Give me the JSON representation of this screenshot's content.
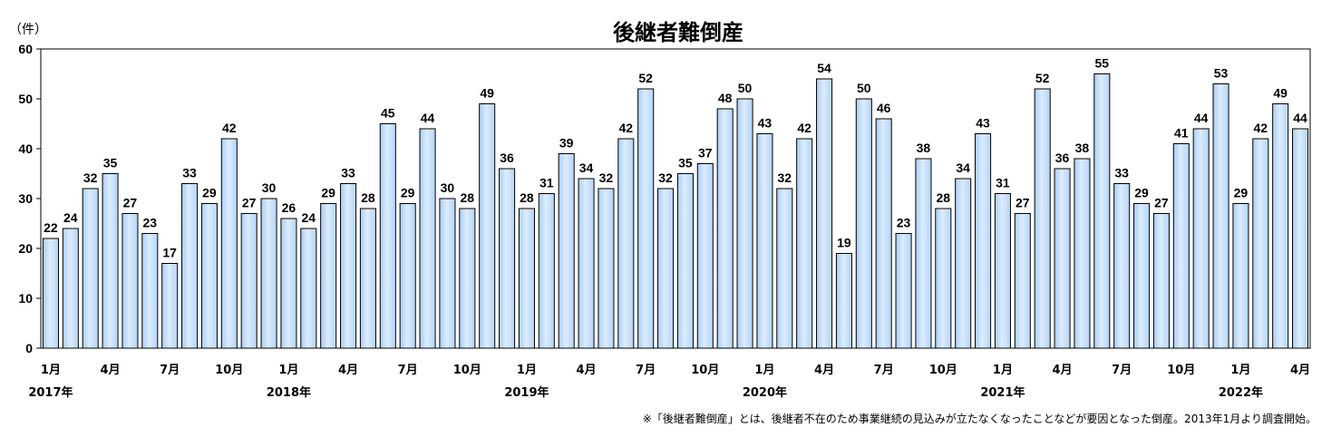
{
  "chart_data": {
    "type": "bar",
    "title": "後継者難倒産",
    "unit_label": "（件）",
    "ylim": [
      0,
      60
    ],
    "yticks": [
      "0",
      "10",
      "20",
      "30",
      "40",
      "50",
      "60"
    ],
    "grid": false,
    "bar_fill": "#c9e1fb",
    "values": [
      22,
      24,
      32,
      35,
      27,
      23,
      17,
      33,
      29,
      42,
      27,
      30,
      26,
      24,
      29,
      33,
      28,
      45,
      29,
      44,
      30,
      28,
      49,
      36,
      28,
      31,
      39,
      34,
      32,
      42,
      52,
      32,
      35,
      37,
      48,
      50,
      43,
      32,
      42,
      54,
      19,
      50,
      46,
      23,
      38,
      28,
      34,
      43,
      31,
      27,
      52,
      36,
      38,
      55,
      33,
      29,
      27,
      41,
      44,
      53,
      29,
      42,
      49,
      44
    ],
    "x_tick_labels": [
      {
        "index": 0,
        "month": "1月",
        "year": "2017年"
      },
      {
        "index": 3,
        "month": "4月",
        "year": ""
      },
      {
        "index": 6,
        "month": "7月",
        "year": ""
      },
      {
        "index": 9,
        "month": "10月",
        "year": ""
      },
      {
        "index": 12,
        "month": "1月",
        "year": "2018年"
      },
      {
        "index": 15,
        "month": "4月",
        "year": ""
      },
      {
        "index": 18,
        "month": "7月",
        "year": ""
      },
      {
        "index": 21,
        "month": "10月",
        "year": ""
      },
      {
        "index": 24,
        "month": "1月",
        "year": "2019年"
      },
      {
        "index": 27,
        "month": "4月",
        "year": ""
      },
      {
        "index": 30,
        "month": "7月",
        "year": ""
      },
      {
        "index": 33,
        "month": "10月",
        "year": ""
      },
      {
        "index": 36,
        "month": "1月",
        "year": "2020年"
      },
      {
        "index": 39,
        "month": "4月",
        "year": ""
      },
      {
        "index": 42,
        "month": "7月",
        "year": ""
      },
      {
        "index": 45,
        "month": "10月",
        "year": ""
      },
      {
        "index": 48,
        "month": "1月",
        "year": "2021年"
      },
      {
        "index": 51,
        "month": "4月",
        "year": ""
      },
      {
        "index": 54,
        "month": "7月",
        "year": ""
      },
      {
        "index": 57,
        "month": "10月",
        "year": ""
      },
      {
        "index": 60,
        "month": "1月",
        "year": "2022年"
      },
      {
        "index": 63,
        "month": "4月",
        "year": ""
      }
    ],
    "footnote": "※「後継者難倒産」とは、後継者不在のため事業継続の見込みが立たなくなったことなどが要因となった倒産。2013年1月より調査開始。"
  }
}
